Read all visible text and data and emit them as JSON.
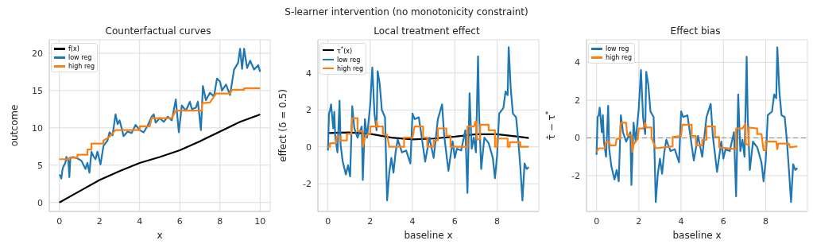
{
  "chart_data": [
    {
      "type": "line",
      "title": "Counterfactual curves",
      "annotations": [
        "S-learner intervention (no monotonicity constraint)"
      ],
      "xlabel": "x",
      "ylabel": "outcome",
      "xlim": [
        -0.5,
        10.5
      ],
      "ylim": [
        -1.2,
        21.8
      ],
      "xticks": [
        0,
        2,
        4,
        6,
        8,
        10
      ],
      "yticks": [
        0,
        5,
        10,
        15,
        20
      ],
      "grid": true,
      "legend": "top left",
      "marker": "none",
      "line_style": "solid",
      "series": [
        {
          "name": "f(x)",
          "color": "#000000",
          "x": [
            0,
            1,
            2,
            3,
            4,
            5,
            6,
            7,
            8,
            9,
            10
          ],
          "values": [
            0,
            1.5,
            3.0,
            4.2,
            5.3,
            6.1,
            7.0,
            8.2,
            9.5,
            10.8,
            11.8
          ]
        },
        {
          "name": "low reg",
          "color": "#1f77b4",
          "x": [
            0,
            0.05,
            0.1,
            0.15,
            0.2,
            0.3,
            0.35,
            0.45,
            0.5,
            0.55,
            0.7,
            0.9,
            1.1,
            1.3,
            1.4,
            1.5,
            1.6,
            1.7,
            1.8,
            1.9,
            2.05,
            2.2,
            2.4,
            2.5,
            2.65,
            2.8,
            2.9,
            3.0,
            3.1,
            3.2,
            3.4,
            3.6,
            3.8,
            4.0,
            4.2,
            4.4,
            4.6,
            4.7,
            4.8,
            5.0,
            5.2,
            5.4,
            5.6,
            5.8,
            5.95,
            6.1,
            6.3,
            6.5,
            6.6,
            6.8,
            6.9,
            7.05,
            7.15,
            7.3,
            7.5,
            7.7,
            7.85,
            8.0,
            8.1,
            8.3,
            8.5,
            8.7,
            8.9,
            9.0,
            9.1,
            9.2,
            9.35,
            9.5,
            9.7,
            9.9,
            10
          ],
          "values": [
            3.7,
            3.6,
            3.2,
            4.3,
            4.8,
            5.3,
            6.1,
            5.6,
            3.4,
            6.0,
            6.1,
            5.9,
            5.6,
            4.5,
            5.3,
            4.0,
            6.8,
            6.2,
            5.8,
            6.8,
            5.1,
            7.6,
            8.3,
            9.4,
            9.0,
            11.8,
            10.5,
            11.0,
            10.0,
            8.9,
            9.5,
            9.3,
            10.4,
            9.7,
            9.4,
            10.3,
            11.5,
            11.8,
            10.7,
            11.3,
            10.8,
            11.5,
            11.0,
            13.8,
            9.4,
            13.0,
            12.3,
            13.5,
            12.5,
            12.7,
            13.5,
            9.7,
            15.6,
            13.7,
            14.7,
            14.2,
            16.6,
            16.2,
            15.0,
            15.8,
            14.4,
            17.8,
            18.7,
            20.6,
            17.9,
            20.6,
            18.0,
            19.0,
            17.8,
            18.4,
            17.5
          ]
        },
        {
          "name": "high reg",
          "color": "#ff7f0e",
          "x": [
            0,
            0.5,
            0.5,
            0.9,
            0.9,
            1.4,
            1.4,
            1.6,
            1.6,
            2.2,
            2.2,
            2.5,
            2.8,
            4.0,
            4.0,
            4.5,
            4.6,
            5.6,
            5.8,
            7.1,
            7.1,
            7.5,
            7.8,
            8.5,
            8.6,
            9.2,
            9.2,
            10
          ],
          "values": [
            5.8,
            5.8,
            6.0,
            6.0,
            6.4,
            6.4,
            7.1,
            7.1,
            7.9,
            7.9,
            8.3,
            8.8,
            9.7,
            9.7,
            10.2,
            10.2,
            11.3,
            11.3,
            12.3,
            12.3,
            13.3,
            13.4,
            14.6,
            14.6,
            15.1,
            15.1,
            15.3,
            15.3
          ]
        }
      ]
    },
    {
      "type": "line",
      "title": "Local treatment effect",
      "xlabel": "baseline x",
      "ylabel": "effect (δ = 0.5)",
      "xlim": [
        -0.475,
        9.975
      ],
      "ylim": [
        -3.5,
        5.8
      ],
      "xticks": [
        0,
        2,
        4,
        6,
        8
      ],
      "yticks": [
        -2,
        0,
        2,
        4
      ],
      "grid": true,
      "legend": "top left",
      "marker": "none",
      "line_style": "solid",
      "series": [
        {
          "name": "τ$^{*}$(x)",
          "color": "#000000",
          "x": [
            0,
            1,
            2,
            3,
            4,
            5,
            6,
            7,
            8,
            9,
            9.5
          ],
          "values": [
            0.75,
            0.78,
            0.7,
            0.5,
            0.4,
            0.45,
            0.55,
            0.68,
            0.68,
            0.55,
            0.48
          ]
        },
        {
          "name": "low reg",
          "color": "#1f77b4",
          "x": [
            0,
            0.05,
            0.1,
            0.15,
            0.25,
            0.3,
            0.35,
            0.45,
            0.55,
            0.6,
            0.7,
            0.85,
            0.95,
            1.05,
            1.15,
            1.25,
            1.4,
            1.6,
            1.65,
            1.75,
            1.85,
            2.0,
            2.1,
            2.2,
            2.3,
            2.35,
            2.45,
            2.55,
            2.7,
            2.8,
            2.9,
            3.0,
            3.1,
            3.2,
            3.3,
            3.5,
            3.7,
            3.9,
            4.0,
            4.1,
            4.3,
            4.4,
            4.6,
            4.8,
            5.0,
            5.2,
            5.4,
            5.5,
            5.7,
            5.9,
            6.0,
            6.1,
            6.3,
            6.5,
            6.6,
            6.7,
            6.8,
            6.9,
            7.0,
            7.1,
            7.15,
            7.25,
            7.4,
            7.6,
            7.8,
            7.9,
            8.0,
            8.1,
            8.3,
            8.4,
            8.5,
            8.55,
            8.65,
            8.75,
            8.9,
            9.0,
            9.1,
            9.2,
            9.3,
            9.4,
            9.5
          ],
          "values": [
            -0.2,
            1.8,
            2.0,
            2.3,
            1.0,
            1.9,
            0.5,
            -0.3,
            2.5,
            0.1,
            -0.8,
            -1.5,
            -1.0,
            -1.6,
            2.2,
            1.0,
            0.5,
            1.1,
            -1.8,
            1.5,
            0.5,
            2.3,
            4.3,
            1.8,
            0.9,
            4.1,
            3.4,
            2.0,
            1.6,
            -2.9,
            -1.4,
            -0.6,
            -1.4,
            -0.3,
            0.4,
            -0.3,
            -0.2,
            -0.9,
            1.8,
            1.5,
            1.6,
            0.8,
            -0.8,
            0.5,
            -0.6,
            1.5,
            2.3,
            0.6,
            -1.3,
            0.3,
            -0.6,
            -0.1,
            -0.2,
            0.9,
            -2.5,
            2.9,
            -0.1,
            0.5,
            -0.3,
            4.9,
            1.8,
            -1.2,
            0.5,
            0.2,
            -0.6,
            -1.7,
            -0.5,
            1.8,
            2.1,
            3.0,
            2.8,
            5.4,
            3.1,
            1.8,
            1.6,
            0.4,
            -1.1,
            -2.9,
            -0.9,
            -1.2,
            -1.1
          ]
        },
        {
          "name": "high reg",
          "color": "#ff7f0e",
          "x": [
            0,
            0.1,
            0.1,
            0.4,
            0.4,
            0.6,
            0.6,
            0.9,
            0.9,
            1.1,
            1.15,
            1.4,
            1.4,
            1.65,
            1.65,
            1.75,
            1.9,
            2.0,
            2.0,
            2.3,
            2.3,
            2.35,
            2.6,
            2.6,
            2.8,
            2.9,
            3.6,
            3.6,
            4.0,
            4.1,
            4.5,
            4.5,
            4.7,
            4.7,
            5.0,
            5.0,
            5.2,
            5.2,
            5.6,
            5.6,
            5.8,
            5.8,
            6.6,
            6.6,
            6.9,
            7.0,
            7.05,
            7.2,
            7.2,
            7.6,
            7.6,
            7.9,
            7.9,
            8.0,
            8.0,
            8.5,
            8.5,
            8.6,
            8.6,
            9.1,
            9.1,
            9.5
          ],
          "values": [
            0,
            0,
            0.2,
            0.2,
            0.55,
            0.55,
            0.35,
            0.35,
            0.7,
            0.7,
            1.55,
            1.55,
            0.85,
            0.85,
            0,
            0.5,
            0.7,
            0.7,
            1.1,
            1.1,
            1.4,
            1.1,
            1.1,
            0.7,
            0.65,
            0,
            0,
            0.5,
            0.5,
            1.1,
            1.1,
            0.5,
            0.5,
            0,
            0,
            0.35,
            0.35,
            1.0,
            1.0,
            0.6,
            0.6,
            0,
            0,
            1.1,
            1.1,
            1.4,
            0.4,
            0.4,
            1.2,
            1.2,
            0.9,
            0.9,
            0,
            0,
            0.45,
            0.45,
            0,
            0,
            0.25,
            0.25,
            0,
            0
          ]
        }
      ]
    },
    {
      "type": "line",
      "title": "Effect bias",
      "xlabel": "baseline x",
      "ylabel": "τ̂ − τ$^{*}$",
      "xlim": [
        -0.475,
        9.975
      ],
      "ylim": [
        -3.9,
        5.2
      ],
      "xticks": [
        0,
        2,
        4,
        6,
        8
      ],
      "yticks": [
        -2,
        0,
        2,
        4
      ],
      "grid": true,
      "legend": "top left",
      "marker": "none",
      "line_style": "solid",
      "ref_lines": [
        {
          "axis": "y",
          "value": 0,
          "color": "#808080",
          "line_style": "dashed"
        }
      ],
      "series": [
        {
          "name": "low reg",
          "color": "#1f77b4",
          "x": [
            0,
            0.05,
            0.1,
            0.15,
            0.25,
            0.3,
            0.35,
            0.45,
            0.55,
            0.6,
            0.7,
            0.85,
            0.95,
            1.05,
            1.15,
            1.25,
            1.4,
            1.6,
            1.65,
            1.75,
            1.85,
            2.0,
            2.1,
            2.2,
            2.3,
            2.35,
            2.45,
            2.55,
            2.7,
            2.8,
            2.9,
            3.0,
            3.1,
            3.2,
            3.3,
            3.5,
            3.7,
            3.9,
            4.0,
            4.1,
            4.3,
            4.4,
            4.6,
            4.8,
            5.0,
            5.2,
            5.4,
            5.5,
            5.7,
            5.9,
            6.0,
            6.1,
            6.3,
            6.5,
            6.6,
            6.7,
            6.8,
            6.9,
            7.0,
            7.1,
            7.15,
            7.25,
            7.4,
            7.6,
            7.8,
            7.9,
            8.0,
            8.1,
            8.3,
            8.4,
            8.5,
            8.55,
            8.65,
            8.75,
            8.9,
            9.0,
            9.1,
            9.2,
            9.3,
            9.4,
            9.5
          ],
          "values": [
            -0.9,
            1.1,
            1.2,
            1.6,
            0.3,
            1.2,
            -0.2,
            -1.0,
            1.7,
            -0.6,
            -1.5,
            -2.2,
            -1.7,
            -2.3,
            1.2,
            0.3,
            -0.2,
            0.3,
            -2.5,
            0.8,
            -0.2,
            1.6,
            3.6,
            1.1,
            0.2,
            3.5,
            2.8,
            1.4,
            1.1,
            -3.4,
            -1.9,
            -1.1,
            -1.9,
            -0.8,
            -0.1,
            -0.7,
            -0.6,
            -1.3,
            1.4,
            1.1,
            1.2,
            0.4,
            -1.2,
            0.1,
            -1.0,
            1.1,
            1.8,
            0.1,
            -1.8,
            -0.2,
            -1.1,
            -0.6,
            -0.7,
            0.3,
            -3.1,
            2.3,
            -0.7,
            -0.1,
            -1.0,
            4.3,
            1.1,
            -1.7,
            -0.2,
            -0.5,
            -1.3,
            -2.3,
            -1.2,
            1.2,
            1.4,
            2.3,
            2.1,
            4.8,
            2.4,
            1.2,
            1.1,
            -0.1,
            -1.7,
            -3.4,
            -1.4,
            -1.7,
            -1.6
          ]
        },
        {
          "name": "high reg",
          "color": "#ff7f0e",
          "x": [
            0,
            0.1,
            0.4,
            0.45,
            0.6,
            0.65,
            0.9,
            0.95,
            1.1,
            1.15,
            1.4,
            1.45,
            1.65,
            1.7,
            1.75,
            1.95,
            2.0,
            2.2,
            2.3,
            2.35,
            2.6,
            2.6,
            2.8,
            3.6,
            3.6,
            4.0,
            4.05,
            4.5,
            4.5,
            4.7,
            4.7,
            5.0,
            5.0,
            5.2,
            5.2,
            5.6,
            5.6,
            5.8,
            5.8,
            6.6,
            6.6,
            6.9,
            7.05,
            7.05,
            7.2,
            7.2,
            7.6,
            7.6,
            7.8,
            7.9,
            8.0,
            8.0,
            8.5,
            8.55,
            8.6,
            9.1,
            9.15,
            9.5
          ],
          "values": [
            -0.75,
            -0.55,
            -0.55,
            -0.2,
            -0.2,
            -0.4,
            -0.4,
            -0.05,
            -0.05,
            0.8,
            0.8,
            0.15,
            0.15,
            -0.75,
            -0.35,
            -0.05,
            0.5,
            0.5,
            0.8,
            0.55,
            0.55,
            0.0,
            -0.55,
            -0.45,
            0.05,
            0.1,
            0.7,
            0.7,
            0.1,
            0.1,
            -0.4,
            -0.4,
            -0.1,
            -0.1,
            0.6,
            0.6,
            0.05,
            0.05,
            -0.5,
            -0.6,
            0.5,
            0.5,
            0.75,
            -0.3,
            -0.4,
            0.55,
            0.5,
            0.2,
            0.2,
            -0.65,
            -0.65,
            -0.2,
            -0.2,
            -0.6,
            -0.3,
            -0.3,
            -0.5,
            -0.45
          ]
        }
      ]
    }
  ]
}
